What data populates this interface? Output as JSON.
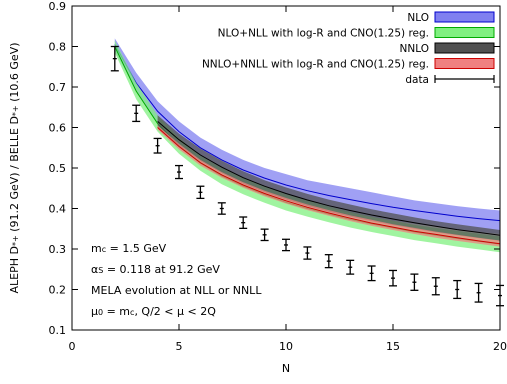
{
  "chart_data": {
    "type": "area",
    "xlabel": "N",
    "ylabel": "ALEPH D*+ (91.2 GeV) / BELLE D*+ (10.6 GeV)",
    "ylabel_parts": [
      "ALEPH D",
      "*+",
      " (91.2 GeV) / BELLE D",
      "*+",
      " (10.6 GeV)"
    ],
    "xlim": [
      0,
      20
    ],
    "ylim": [
      0.1,
      0.9
    ],
    "xticks": [
      0,
      5,
      10,
      15,
      20
    ],
    "yticks": [
      0.1,
      0.2,
      0.3,
      0.4,
      0.5,
      0.6,
      0.7,
      0.8,
      0.9
    ],
    "grid": false,
    "legend_position": "top-right",
    "x": [
      2,
      3,
      4,
      5,
      6,
      7,
      8,
      9,
      10,
      11,
      12,
      13,
      14,
      15,
      16,
      17,
      18,
      19,
      20
    ],
    "bands": [
      {
        "name": "NLO",
        "fill": "#8080f0",
        "edge": "#0000cc",
        "x": [
          2,
          3,
          4,
          5,
          6,
          7,
          8,
          9,
          10,
          11,
          12,
          13,
          14,
          15,
          16,
          17,
          18,
          19,
          20
        ],
        "upper": [
          0.82,
          0.735,
          0.665,
          0.615,
          0.575,
          0.545,
          0.52,
          0.5,
          0.485,
          0.47,
          0.46,
          0.45,
          0.44,
          0.43,
          0.42,
          0.413,
          0.406,
          0.4,
          0.395
        ],
        "central": [
          0.805,
          0.71,
          0.64,
          0.59,
          0.55,
          0.52,
          0.495,
          0.475,
          0.458,
          0.444,
          0.432,
          0.422,
          0.412,
          0.403,
          0.395,
          0.388,
          0.381,
          0.375,
          0.37
        ],
        "lower": [
          0.79,
          0.69,
          0.61,
          0.56,
          0.52,
          0.49,
          0.465,
          0.445,
          0.428,
          0.413,
          0.4,
          0.389,
          0.379,
          0.37,
          0.362,
          0.355,
          0.348,
          0.342,
          0.337
        ]
      },
      {
        "name": "NLO+NLL with log-R and CNO(1.25) reg.",
        "fill": "#80f080",
        "edge": "#00aa00",
        "x": [
          2,
          3,
          4,
          5,
          6,
          7,
          8,
          9,
          10,
          11,
          12,
          13,
          14,
          15,
          16,
          17,
          18,
          19,
          20
        ],
        "upper": [
          0.815,
          0.71,
          0.63,
          0.575,
          0.53,
          0.5,
          0.475,
          0.455,
          0.435,
          0.42,
          0.405,
          0.392,
          0.38,
          0.37,
          0.36,
          0.352,
          0.345,
          0.338,
          0.331
        ],
        "central": [
          0.8,
          0.69,
          0.61,
          0.555,
          0.512,
          0.48,
          0.455,
          0.434,
          0.415,
          0.4,
          0.386,
          0.373,
          0.362,
          0.352,
          0.342,
          0.334,
          0.326,
          0.319,
          0.312
        ],
        "lower": [
          0.785,
          0.67,
          0.59,
          0.535,
          0.493,
          0.46,
          0.435,
          0.414,
          0.395,
          0.38,
          0.366,
          0.353,
          0.342,
          0.332,
          0.322,
          0.314,
          0.306,
          0.299,
          0.292
        ]
      },
      {
        "name": "NNLO",
        "fill": "#505050",
        "edge": "#000000",
        "x": [
          4,
          5,
          6,
          7,
          8,
          9,
          10,
          11,
          12,
          13,
          14,
          15,
          16,
          17,
          18,
          19,
          20
        ],
        "upper": [
          0.63,
          0.585,
          0.548,
          0.518,
          0.492,
          0.47,
          0.452,
          0.436,
          0.422,
          0.41,
          0.398,
          0.388,
          0.378,
          0.369,
          0.361,
          0.354,
          0.347
        ],
        "central": [
          0.615,
          0.57,
          0.532,
          0.502,
          0.476,
          0.455,
          0.437,
          0.421,
          0.407,
          0.395,
          0.384,
          0.374,
          0.365,
          0.356,
          0.348,
          0.341,
          0.334
        ],
        "lower": [
          0.6,
          0.555,
          0.517,
          0.487,
          0.461,
          0.44,
          0.422,
          0.406,
          0.392,
          0.38,
          0.369,
          0.359,
          0.35,
          0.341,
          0.334,
          0.327,
          0.32
        ]
      },
      {
        "name": "NNLO+NNLL with log-R and CNO(1.25) reg.",
        "fill": "#f08080",
        "edge": "#cc0000",
        "x": [
          4,
          5,
          6,
          7,
          8,
          9,
          10,
          11,
          12,
          13,
          14,
          15,
          16,
          17,
          18,
          19,
          20
        ],
        "upper": [
          0.605,
          0.56,
          0.52,
          0.49,
          0.465,
          0.444,
          0.426,
          0.41,
          0.396,
          0.383,
          0.372,
          0.361,
          0.352,
          0.343,
          0.335,
          0.328,
          0.321
        ],
        "central": [
          0.6,
          0.553,
          0.513,
          0.483,
          0.458,
          0.437,
          0.419,
          0.403,
          0.389,
          0.376,
          0.364,
          0.354,
          0.344,
          0.336,
          0.328,
          0.32,
          0.313
        ],
        "lower": [
          0.595,
          0.546,
          0.506,
          0.476,
          0.451,
          0.43,
          0.412,
          0.396,
          0.382,
          0.369,
          0.357,
          0.347,
          0.337,
          0.328,
          0.32,
          0.313,
          0.306
        ]
      }
    ],
    "data_series": {
      "name": "data",
      "x": [
        2,
        3,
        4,
        5,
        6,
        7,
        8,
        9,
        10,
        11,
        12,
        13,
        14,
        15,
        16,
        17,
        18,
        19,
        20
      ],
      "y": [
        0.77,
        0.635,
        0.555,
        0.49,
        0.44,
        0.4,
        0.365,
        0.335,
        0.31,
        0.29,
        0.27,
        0.255,
        0.24,
        0.228,
        0.218,
        0.208,
        0.2,
        0.192,
        0.185
      ],
      "err": [
        0.03,
        0.02,
        0.018,
        0.016,
        0.015,
        0.014,
        0.014,
        0.014,
        0.014,
        0.015,
        0.016,
        0.017,
        0.018,
        0.019,
        0.02,
        0.021,
        0.022,
        0.023,
        0.025
      ]
    },
    "annotations": [
      [
        "m",
        "c",
        " = 1.5 GeV"
      ],
      [
        "α",
        "S",
        " = 0.118 at 91.2 GeV"
      ],
      [
        "MELA evolution at NLL or NNLL"
      ],
      [
        "μ",
        "0",
        " = m",
        "c",
        ", Q/2 < μ < 2Q"
      ]
    ]
  }
}
